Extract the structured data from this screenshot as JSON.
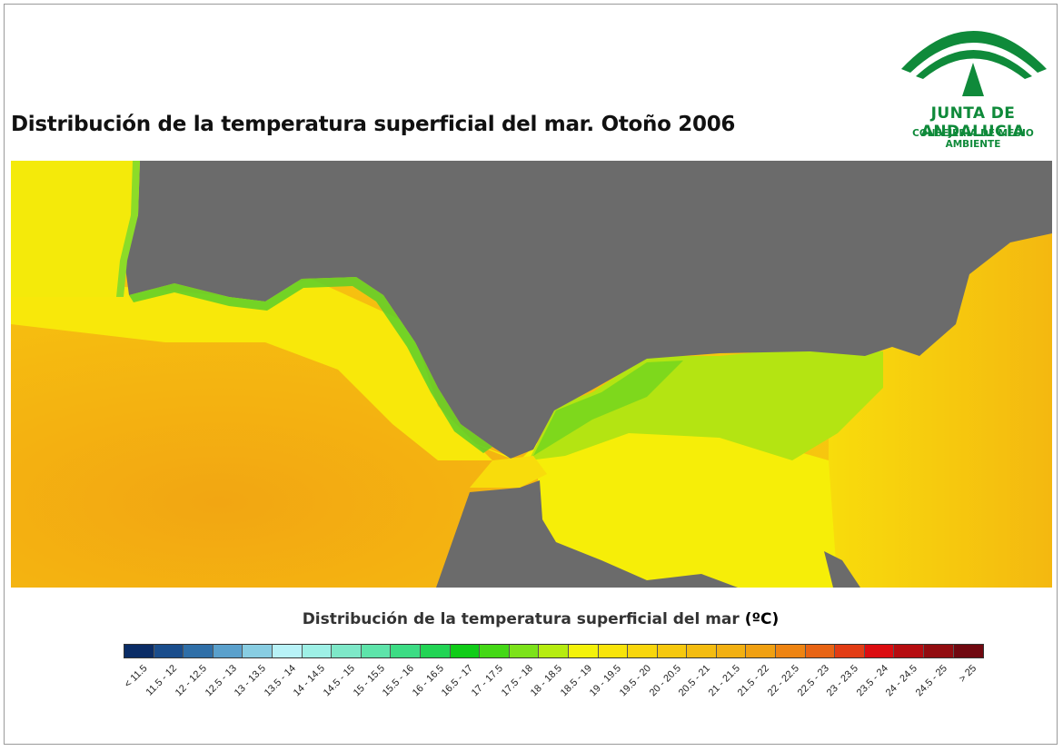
{
  "title": "Distribución de la temperatura superficial del mar. Otoño 2006",
  "logo": {
    "name": "JUNTA DE ANDALUCIA",
    "subtitle": "CONSEJERÍA DE MEDIO AMBIENTE",
    "color": "#0f8a3a"
  },
  "map": {
    "land_color": "#6b6b6b",
    "water_palette": [
      "#f2a612",
      "#f6bf10",
      "#f7d20e",
      "#fbeb04",
      "#f2f20a",
      "#b6ec10",
      "#8cdc28"
    ]
  },
  "legend": {
    "title": "Distribución de la temperatura superficial del mar",
    "unit": "(ºC)",
    "classes": [
      {
        "label": "< 11.5",
        "color": "#0a2c66"
      },
      {
        "label": "11.5 - 12",
        "color": "#1a4d8c"
      },
      {
        "label": "12 - 12.5",
        "color": "#2f6fa8"
      },
      {
        "label": "12.5 - 13",
        "color": "#5aa0cc"
      },
      {
        "label": "13 - 13.5",
        "color": "#88cde2"
      },
      {
        "label": "13.5 - 14",
        "color": "#b8f2f7"
      },
      {
        "label": "14 - 14.5",
        "color": "#9ef0e6"
      },
      {
        "label": "14.5 - 15",
        "color": "#7ee8c8"
      },
      {
        "label": "15 - 15.5",
        "color": "#5ee4aa"
      },
      {
        "label": "15.5 - 16",
        "color": "#3cdc84"
      },
      {
        "label": "16 - 16.5",
        "color": "#22d454"
      },
      {
        "label": "16.5 - 17",
        "color": "#10cc18"
      },
      {
        "label": "17 - 17.5",
        "color": "#44d816"
      },
      {
        "label": "17.5 - 18",
        "color": "#7ce21a"
      },
      {
        "label": "18 - 18.5",
        "color": "#b6ec10"
      },
      {
        "label": "18.5 - 19",
        "color": "#f4f20a"
      },
      {
        "label": "19 - 19.5",
        "color": "#f8e40a"
      },
      {
        "label": "19.5 - 20",
        "color": "#f8d60c"
      },
      {
        "label": "20 - 20.5",
        "color": "#f6c80e"
      },
      {
        "label": "20.5 - 21",
        "color": "#f4bc10"
      },
      {
        "label": "21 - 21.5",
        "color": "#f2b012"
      },
      {
        "label": "21.5 - 22",
        "color": "#f0a012"
      },
      {
        "label": "22 - 22.5",
        "color": "#ee8412"
      },
      {
        "label": "22.5 - 23",
        "color": "#e86414"
      },
      {
        "label": "23 - 23.5",
        "color": "#e23c14"
      },
      {
        "label": "23.5 - 24",
        "color": "#dc0c10"
      },
      {
        "label": "24 - 24.5",
        "color": "#b60c10"
      },
      {
        "label": "24.5 - 25",
        "color": "#920c10"
      },
      {
        "label": "> 25",
        "color": "#700810"
      }
    ]
  }
}
